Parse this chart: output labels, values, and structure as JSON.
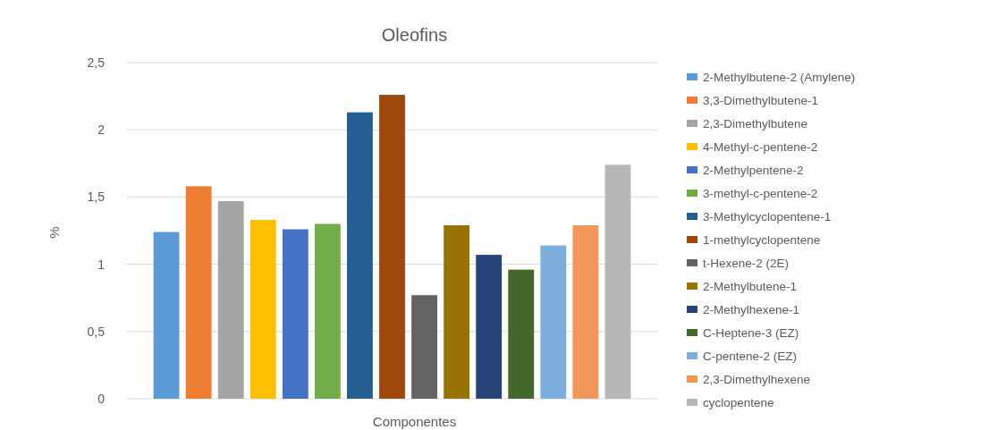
{
  "chart_data": {
    "type": "bar",
    "title": "Oleofins",
    "xlabel": "Componentes",
    "ylabel": "%",
    "categories": [
      null
    ],
    "series": [
      {
        "name": "2-Methylbutene-2 (Amylene)",
        "color": "#5b9bd5",
        "values": [
          1.24
        ]
      },
      {
        "name": "3,3-Dimethylbutene-1",
        "color": "#ed7d31",
        "values": [
          1.58
        ]
      },
      {
        "name": "2,3-Dimethylbutene",
        "color": "#a5a5a5",
        "values": [
          1.47
        ]
      },
      {
        "name": "4-Methyl-c-pentene-2",
        "color": "#ffc000",
        "values": [
          1.33
        ]
      },
      {
        "name": "2-Methylpentene-2",
        "color": "#4472c4",
        "values": [
          1.26
        ]
      },
      {
        "name": "3-methyl-c-pentene-2",
        "color": "#70ad47",
        "values": [
          1.3
        ]
      },
      {
        "name": "3-Methylcyclopentene-1",
        "color": "#255e91",
        "values": [
          2.13
        ]
      },
      {
        "name": "1-methylcyclopentene",
        "color": "#9e480e",
        "values": [
          2.26
        ]
      },
      {
        "name": "t-Hexene-2 (2E)",
        "color": "#636363",
        "values": [
          0.77
        ]
      },
      {
        "name": "2-Methylbutene-1",
        "color": "#997300",
        "values": [
          1.29
        ]
      },
      {
        "name": "2-Methylhexene-1",
        "color": "#264478",
        "values": [
          1.07
        ]
      },
      {
        "name": "C-Heptene-3 (EZ)",
        "color": "#43682b",
        "values": [
          0.96
        ]
      },
      {
        "name": "C-pentene-2 (EZ)",
        "color": "#7cafdd",
        "values": [
          1.14
        ]
      },
      {
        "name": "2,3-Dimethylhexene",
        "color": "#f1975a",
        "values": [
          1.29
        ]
      },
      {
        "name": "cyclopentene",
        "color": "#b7b7b7",
        "values": [
          1.74
        ]
      }
    ],
    "ylim": [
      0,
      2.5
    ],
    "yticks": [
      0,
      {
        "value": 0.5,
        "label": "0,5"
      },
      1,
      {
        "value": 1.5,
        "label": "1,5"
      },
      2,
      {
        "value": 2.5,
        "label": "2,5"
      }
    ],
    "grid": "y",
    "legend": "right"
  }
}
